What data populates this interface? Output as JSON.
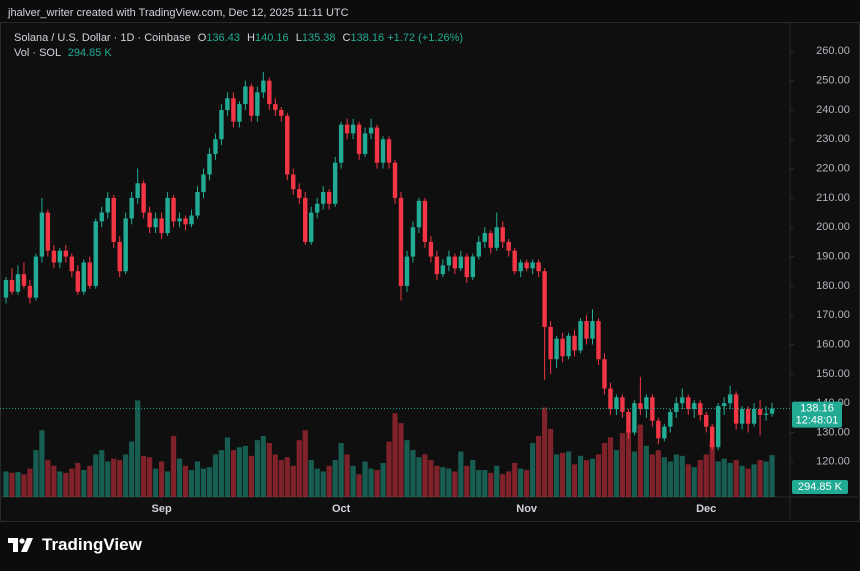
{
  "credit": "jhalver_writer created with TradingView.com, Dec 12, 2025 11:11 UTC",
  "brand": "TradingView",
  "chart_data": {
    "type": "candlestick",
    "title": "Solana / U.S. Dollar · 1D · Coinbase",
    "ohlc_letters": [
      "O",
      "H",
      "L",
      "C"
    ],
    "change": "+1.72 (+1.26%)",
    "volume_title": "Vol · SOL",
    "volume_value_label": "294.85 K",
    "countdown": "12:48:01",
    "up_color": "#22ab94",
    "down_color": "#f23645",
    "open": [
      176,
      182,
      178,
      184,
      180,
      176,
      190,
      205,
      192,
      188,
      192,
      190,
      185,
      178,
      188,
      180,
      202,
      205,
      210,
      195,
      185,
      203,
      210,
      215,
      205,
      200,
      203,
      198,
      210,
      202,
      203,
      201,
      204,
      212,
      218,
      225,
      230,
      240,
      244,
      236,
      242,
      248,
      238,
      246,
      250,
      242,
      240,
      238,
      218,
      213,
      210,
      195,
      205,
      208,
      212,
      208,
      222,
      235,
      232,
      235,
      225,
      232,
      234,
      222,
      230,
      222,
      210,
      180,
      190,
      200,
      209,
      195,
      190,
      184,
      187,
      190,
      186,
      190,
      183,
      190,
      195,
      198,
      193,
      200,
      195,
      192,
      185,
      188,
      186,
      188,
      185,
      166,
      155,
      162,
      156,
      163,
      158,
      168,
      162,
      168,
      155,
      145,
      138,
      142,
      137,
      130,
      140,
      138,
      142,
      134,
      128,
      132,
      137,
      140,
      142,
      138,
      140,
      136,
      132,
      125,
      139,
      140,
      143,
      133,
      138,
      133,
      138,
      136,
      136.43
    ],
    "high": [
      183,
      186,
      187,
      188,
      182,
      191,
      210,
      206,
      194,
      193,
      194,
      191,
      187,
      189,
      190,
      203,
      207,
      212,
      211,
      197,
      205,
      212,
      220,
      216,
      207,
      205,
      205,
      212,
      211,
      205,
      204,
      206,
      214,
      220,
      227,
      232,
      242,
      246,
      246,
      243,
      250,
      249,
      248,
      253,
      251,
      244,
      241,
      239,
      220,
      215,
      212,
      207,
      210,
      214,
      213,
      224,
      236,
      237,
      237,
      236,
      234,
      237,
      235,
      231,
      231,
      223,
      212,
      192,
      202,
      210,
      210,
      197,
      192,
      189,
      192,
      191,
      192,
      191,
      191,
      197,
      200,
      199,
      205,
      202,
      196,
      193,
      189,
      189,
      189,
      189,
      186,
      168,
      163,
      164,
      164,
      165,
      169,
      170,
      172,
      169,
      157,
      147,
      143,
      143,
      138,
      141,
      149,
      143,
      143,
      135,
      133,
      138,
      142,
      145,
      143,
      141,
      141,
      137,
      133,
      140,
      142,
      146,
      144,
      139,
      139,
      140,
      141,
      139,
      140.16
    ],
    "low": [
      174,
      177,
      177,
      179,
      174,
      175,
      188,
      190,
      186,
      186,
      188,
      183,
      177,
      177,
      179,
      179,
      200,
      203,
      193,
      183,
      184,
      201,
      208,
      203,
      198,
      198,
      196,
      197,
      200,
      200,
      199,
      200,
      203,
      210,
      216,
      223,
      228,
      238,
      234,
      234,
      240,
      236,
      236,
      244,
      240,
      238,
      236,
      216,
      211,
      208,
      194,
      194,
      203,
      206,
      206,
      207,
      220,
      230,
      230,
      223,
      224,
      230,
      220,
      220,
      220,
      208,
      175,
      178,
      188,
      198,
      193,
      188,
      182,
      183,
      185,
      184,
      185,
      181,
      182,
      189,
      193,
      191,
      192,
      193,
      190,
      184,
      183,
      185,
      184,
      183,
      148,
      150,
      152,
      154,
      155,
      156,
      157,
      160,
      160,
      153,
      143,
      136,
      136,
      135,
      128,
      129,
      136,
      135,
      132,
      126,
      127,
      130,
      135,
      138,
      136,
      135,
      134,
      130,
      124,
      124,
      136,
      138,
      131,
      131,
      130,
      132,
      129,
      134,
      135.38
    ],
    "close": [
      182,
      178,
      184,
      180,
      176,
      190,
      205,
      192,
      188,
      192,
      190,
      185,
      178,
      188,
      180,
      202,
      205,
      210,
      195,
      185,
      203,
      210,
      215,
      205,
      200,
      203,
      198,
      210,
      202,
      203,
      201,
      204,
      212,
      218,
      225,
      230,
      240,
      244,
      236,
      242,
      248,
      238,
      246,
      250,
      242,
      240,
      238,
      218,
      213,
      210,
      195,
      205,
      208,
      212,
      208,
      222,
      235,
      232,
      235,
      225,
      232,
      234,
      222,
      230,
      222,
      210,
      180,
      190,
      200,
      209,
      195,
      190,
      184,
      187,
      190,
      186,
      190,
      183,
      190,
      195,
      198,
      193,
      200,
      195,
      192,
      185,
      188,
      186,
      188,
      185,
      166,
      155,
      162,
      156,
      163,
      158,
      168,
      162,
      168,
      155,
      145,
      138,
      142,
      137,
      130,
      140,
      138,
      142,
      134,
      128,
      132,
      137,
      140,
      142,
      138,
      140,
      136,
      132,
      125,
      139,
      140,
      143,
      133,
      138,
      133,
      138,
      136,
      136.43,
      138.16
    ],
    "volume": [
      180,
      170,
      175,
      160,
      200,
      330,
      470,
      260,
      220,
      180,
      170,
      200,
      240,
      190,
      220,
      300,
      330,
      250,
      270,
      260,
      300,
      390,
      680,
      290,
      280,
      200,
      250,
      180,
      430,
      270,
      220,
      190,
      250,
      200,
      210,
      300,
      330,
      420,
      330,
      350,
      360,
      290,
      400,
      430,
      380,
      300,
      260,
      280,
      220,
      400,
      470,
      260,
      200,
      180,
      220,
      260,
      380,
      300,
      220,
      160,
      250,
      200,
      190,
      240,
      390,
      590,
      520,
      400,
      330,
      280,
      300,
      260,
      220,
      210,
      200,
      180,
      320,
      220,
      260,
      190,
      190,
      170,
      220,
      160,
      180,
      240,
      200,
      190,
      380,
      430,
      630,
      480,
      300,
      310,
      320,
      230,
      290,
      260,
      270,
      300,
      380,
      420,
      330,
      450,
      470,
      320,
      510,
      360,
      300,
      330,
      280,
      250,
      300,
      290,
      230,
      210,
      260,
      300,
      390,
      250,
      270,
      240,
      260,
      220,
      200,
      230,
      260,
      250,
      294.85
    ],
    "xlim": [
      -1,
      131
    ],
    "xticks": [
      {
        "value": 26,
        "label": "Sep"
      },
      {
        "value": 56,
        "label": "Oct"
      },
      {
        "value": 87,
        "label": "Nov"
      },
      {
        "value": 117,
        "label": "Dec"
      }
    ],
    "ylim": [
      108,
      270
    ],
    "yticks": [
      {
        "value": 120,
        "label": "120.00"
      },
      {
        "value": 130,
        "label": "130.00"
      },
      {
        "value": 140,
        "label": "140.00"
      },
      {
        "value": 150,
        "label": "150.00"
      },
      {
        "value": 160,
        "label": "160.00"
      },
      {
        "value": 170,
        "label": "170.00"
      },
      {
        "value": 180,
        "label": "180.00"
      },
      {
        "value": 190,
        "label": "190.00"
      },
      {
        "value": 200,
        "label": "200.00"
      },
      {
        "value": 210,
        "label": "210.00"
      },
      {
        "value": 220,
        "label": "220.00"
      },
      {
        "value": 230,
        "label": "230.00"
      },
      {
        "value": 240,
        "label": "240.00"
      },
      {
        "value": 250,
        "label": "250.00"
      },
      {
        "value": 260,
        "label": "260.00"
      }
    ],
    "grid": false
  }
}
